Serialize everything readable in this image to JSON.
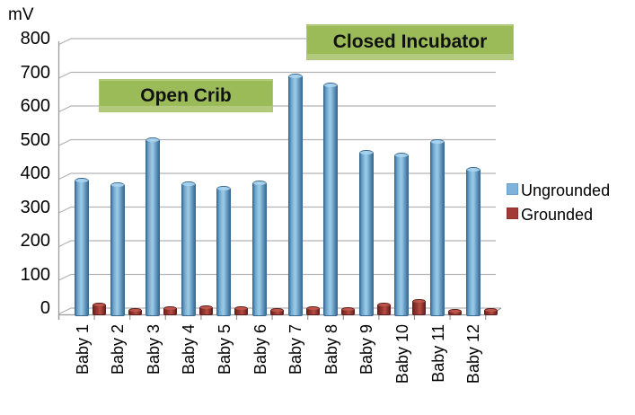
{
  "unit_label": "mV",
  "chart_data": {
    "type": "bar",
    "title": "",
    "unit_label": "mV",
    "xlabel": "",
    "ylabel": "mV",
    "categories": [
      "Baby 1",
      "Baby 2",
      "Baby 3",
      "Baby 4",
      "Baby 5",
      "Baby 6",
      "Baby 7",
      "Baby 8",
      "Baby 9",
      "Baby 10",
      "Baby 11",
      "Baby 12"
    ],
    "series": [
      {
        "name": "Ungrounded",
        "color": "#7EB2DC",
        "values": [
          395,
          382,
          515,
          383,
          370,
          388,
          705,
          678,
          478,
          470,
          510,
          428
        ]
      },
      {
        "name": "Grounded",
        "color": "#A33935",
        "values": [
          28,
          12,
          16,
          20,
          17,
          12,
          16,
          14,
          28,
          38,
          8,
          12
        ]
      }
    ],
    "ylim": [
      0,
      800
    ],
    "yticks": [
      0,
      100,
      200,
      300,
      400,
      500,
      600,
      700,
      800
    ],
    "grid": true,
    "legend_position": "right",
    "style": "3d-cylinder-bars",
    "annotations": [
      {
        "label": "Open Crib",
        "span_categories": [
          "Baby 2",
          "Baby 6"
        ],
        "color": "#9BBB59"
      },
      {
        "label": "Closed Incubator",
        "span_categories": [
          "Baby 7",
          "Baby 12"
        ],
        "color": "#9BBB59"
      }
    ]
  },
  "colors": {
    "bar_blue": "#7EB2DC",
    "bar_blue_dark": "#3A688E",
    "bar_red": "#A33935",
    "bar_red_dark": "#5F1F1C",
    "annotation_green": "#9BBB59",
    "gridline": "#B3B3B3",
    "axis": "#9A9A9A",
    "text": "#000000"
  }
}
